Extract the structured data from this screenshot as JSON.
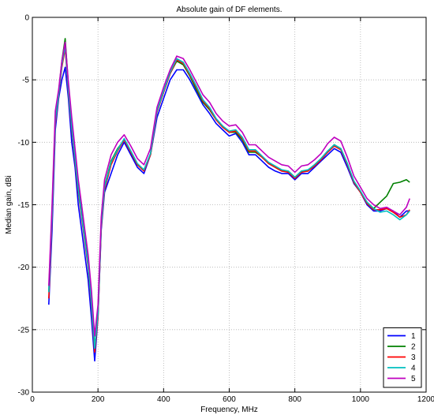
{
  "chart_data": {
    "type": "line",
    "title": "Absolute gain of DF elements.",
    "xlabel": "Frequency, MHz",
    "ylabel": "Median gain, dBi",
    "xlim": [
      0,
      1200
    ],
    "ylim": [
      -30,
      0
    ],
    "xticks": [
      0,
      200,
      400,
      600,
      800,
      1000,
      1200
    ],
    "yticks": [
      0,
      -5,
      -10,
      -15,
      -20,
      -25,
      -30
    ],
    "grid": true,
    "legend_position": "bottom-right",
    "series": [
      {
        "name": "1",
        "color": "#0000ff",
        "x": [
          50,
          60,
          70,
          80,
          90,
          100,
          110,
          120,
          130,
          140,
          150,
          160,
          170,
          180,
          190,
          200,
          210,
          220,
          240,
          260,
          280,
          300,
          320,
          340,
          360,
          380,
          400,
          420,
          440,
          460,
          480,
          500,
          520,
          540,
          560,
          580,
          600,
          620,
          640,
          660,
          680,
          700,
          720,
          740,
          760,
          780,
          800,
          820,
          840,
          860,
          880,
          900,
          920,
          940,
          960,
          980,
          1000,
          1020,
          1040,
          1060,
          1080,
          1100,
          1120,
          1140,
          1150
        ],
        "y": [
          -23,
          -17,
          -9,
          -6.5,
          -5,
          -4,
          -6.5,
          -10,
          -12,
          -15,
          -17,
          -19,
          -21,
          -24,
          -27.5,
          -24,
          -17,
          -14,
          -12.5,
          -11,
          -10,
          -11,
          -12,
          -12.5,
          -11,
          -8,
          -6.5,
          -5,
          -4.2,
          -4.2,
          -5,
          -6,
          -7,
          -7.7,
          -8.5,
          -9,
          -9.5,
          -9.3,
          -10,
          -11,
          -11,
          -11.5,
          -12,
          -12.3,
          -12.5,
          -12.5,
          -13,
          -12.5,
          -12.5,
          -12,
          -11.5,
          -11,
          -10.5,
          -10.8,
          -12,
          -13.3,
          -14,
          -15,
          -15.5,
          -15.5,
          -15.3,
          -15.5,
          -16,
          -15.5,
          -15.5
        ]
      },
      {
        "name": "2",
        "color": "#008000",
        "x": [
          50,
          60,
          70,
          80,
          90,
          100,
          110,
          120,
          130,
          140,
          150,
          160,
          170,
          180,
          190,
          200,
          210,
          220,
          240,
          260,
          280,
          300,
          320,
          340,
          360,
          380,
          400,
          420,
          440,
          460,
          480,
          500,
          520,
          540,
          560,
          580,
          600,
          620,
          640,
          660,
          680,
          700,
          720,
          740,
          760,
          780,
          800,
          820,
          840,
          860,
          880,
          900,
          920,
          940,
          960,
          980,
          1000,
          1020,
          1040,
          1060,
          1080,
          1100,
          1120,
          1140,
          1150
        ],
        "y": [
          -22,
          -15.5,
          -8,
          -6,
          -3.5,
          -1.7,
          -5.5,
          -8.5,
          -11,
          -13.5,
          -15.5,
          -17.5,
          -19.5,
          -22,
          -26.5,
          -23.5,
          -16.5,
          -13.5,
          -11.5,
          -10.5,
          -9.8,
          -10.8,
          -11.8,
          -12.2,
          -11,
          -7.5,
          -6,
          -4.5,
          -3.5,
          -3.8,
          -4.7,
          -5.8,
          -6.8,
          -7.4,
          -8.2,
          -8.7,
          -9.2,
          -9.2,
          -9.8,
          -10.8,
          -10.8,
          -11.2,
          -11.7,
          -12,
          -12.3,
          -12.3,
          -12.8,
          -12.3,
          -12.3,
          -11.8,
          -11.3,
          -10.7,
          -10.2,
          -10.5,
          -11.7,
          -13.2,
          -14,
          -14.8,
          -15.3,
          -14.8,
          -14.3,
          -13.3,
          -13.2,
          -13,
          -13.2
        ]
      },
      {
        "name": "3",
        "color": "#ff0000",
        "x": [
          50,
          60,
          70,
          80,
          90,
          100,
          110,
          120,
          130,
          140,
          150,
          160,
          170,
          180,
          190,
          200,
          210,
          220,
          240,
          260,
          280,
          300,
          320,
          340,
          360,
          380,
          400,
          420,
          440,
          460,
          480,
          500,
          520,
          540,
          560,
          580,
          600,
          620,
          640,
          660,
          680,
          700,
          720,
          740,
          760,
          780,
          800,
          820,
          840,
          860,
          880,
          900,
          920,
          940,
          960,
          980,
          1000,
          1020,
          1040,
          1060,
          1080,
          1100,
          1120,
          1140,
          1150
        ],
        "y": [
          -22.5,
          -16,
          -8.5,
          -6.3,
          -4,
          -2.5,
          -6,
          -9,
          -11.5,
          -14,
          -16,
          -18,
          -20,
          -23,
          -26.8,
          -24,
          -16.8,
          -13.8,
          -11.8,
          -10.7,
          -9.8,
          -10.8,
          -11.8,
          -12.3,
          -11,
          -7.6,
          -6,
          -4.5,
          -3.4,
          -3.7,
          -4.6,
          -5.6,
          -6.7,
          -7.3,
          -8.2,
          -8.8,
          -9.2,
          -9.1,
          -9.7,
          -10.7,
          -10.7,
          -11.2,
          -11.7,
          -12,
          -12.3,
          -12.4,
          -12.9,
          -12.4,
          -12.3,
          -11.9,
          -11.4,
          -10.8,
          -10.3,
          -10.6,
          -11.8,
          -13.2,
          -14,
          -14.9,
          -15.4,
          -15.4,
          -15.3,
          -15.6,
          -16,
          -15.8,
          -15.4
        ]
      },
      {
        "name": "4",
        "color": "#00bfbf",
        "x": [
          50,
          60,
          70,
          80,
          90,
          100,
          110,
          120,
          130,
          140,
          150,
          160,
          170,
          180,
          190,
          200,
          210,
          220,
          240,
          260,
          280,
          300,
          320,
          340,
          360,
          380,
          400,
          420,
          440,
          460,
          480,
          500,
          520,
          540,
          560,
          580,
          600,
          620,
          640,
          660,
          680,
          700,
          720,
          740,
          760,
          780,
          800,
          820,
          840,
          860,
          880,
          900,
          920,
          940,
          960,
          980,
          1000,
          1020,
          1040,
          1060,
          1080,
          1100,
          1120,
          1140,
          1150
        ],
        "y": [
          -22,
          -15.8,
          -8.3,
          -6.2,
          -3.8,
          -2.3,
          -5.8,
          -8.8,
          -11.3,
          -13.8,
          -15.8,
          -17.8,
          -19.8,
          -22.8,
          -26.5,
          -23.7,
          -16.6,
          -13.6,
          -11.6,
          -10.6,
          -9.7,
          -10.7,
          -11.7,
          -12.2,
          -10.9,
          -7.5,
          -5.9,
          -4.4,
          -3.3,
          -3.6,
          -4.5,
          -5.5,
          -6.6,
          -7.2,
          -8.1,
          -8.7,
          -9.1,
          -9,
          -9.6,
          -10.6,
          -10.6,
          -11.1,
          -11.6,
          -11.9,
          -12.2,
          -12.3,
          -12.8,
          -12.3,
          -12.2,
          -11.8,
          -11.3,
          -10.7,
          -10.2,
          -10.5,
          -11.7,
          -13.1,
          -13.9,
          -14.8,
          -15.3,
          -15.6,
          -15.5,
          -15.8,
          -16.2,
          -15.8,
          -15.5
        ]
      },
      {
        "name": "5",
        "color": "#bf00bf",
        "x": [
          50,
          60,
          70,
          80,
          90,
          100,
          110,
          120,
          130,
          140,
          150,
          160,
          170,
          180,
          190,
          200,
          210,
          220,
          240,
          260,
          280,
          300,
          320,
          340,
          360,
          380,
          400,
          420,
          440,
          460,
          480,
          500,
          520,
          540,
          560,
          580,
          600,
          620,
          640,
          660,
          680,
          700,
          720,
          740,
          760,
          780,
          800,
          820,
          840,
          860,
          880,
          900,
          920,
          940,
          960,
          980,
          1000,
          1020,
          1040,
          1060,
          1080,
          1100,
          1120,
          1140,
          1150
        ],
        "y": [
          -21.5,
          -15,
          -7.5,
          -5.8,
          -3.5,
          -2,
          -5.2,
          -8,
          -10.5,
          -13,
          -15,
          -17,
          -19,
          -21.8,
          -25.5,
          -23,
          -16,
          -13,
          -11,
          -10,
          -9.4,
          -10.3,
          -11.3,
          -11.8,
          -10.5,
          -7.2,
          -5.6,
          -4.2,
          -3.1,
          -3.3,
          -4.2,
          -5.2,
          -6.2,
          -6.8,
          -7.7,
          -8.3,
          -8.7,
          -8.6,
          -9.2,
          -10.2,
          -10.2,
          -10.7,
          -11.2,
          -11.5,
          -11.8,
          -11.9,
          -12.4,
          -11.9,
          -11.8,
          -11.4,
          -10.9,
          -10.1,
          -9.6,
          -9.9,
          -11.2,
          -12.7,
          -13.6,
          -14.5,
          -15,
          -15.3,
          -15.2,
          -15.5,
          -15.8,
          -15.2,
          -14.5
        ]
      }
    ]
  }
}
